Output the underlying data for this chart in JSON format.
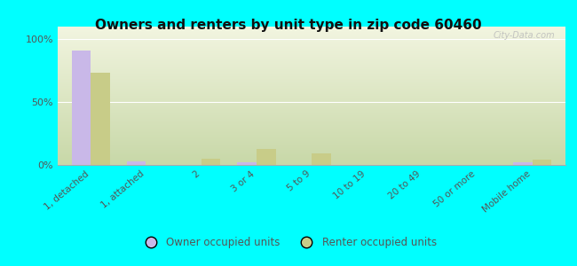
{
  "title": "Owners and renters by unit type in zip code 60460",
  "categories": [
    "1, detached",
    "1, attached",
    "2",
    "3 or 4",
    "5 to 9",
    "10 to 19",
    "20 to 49",
    "50 or more",
    "Mobile home"
  ],
  "owner_values": [
    91,
    3,
    0,
    2,
    0,
    0,
    0,
    0,
    2
  ],
  "renter_values": [
    73,
    0,
    5,
    13,
    9,
    0,
    0,
    0,
    4
  ],
  "owner_color": "#c9b8e8",
  "renter_color": "#c8cc88",
  "background_color": "#00ffff",
  "plot_bg_color": "#e8eec8",
  "watermark": "City-Data.com",
  "ylabel_ticks": [
    "0%",
    "50%",
    "100%"
  ],
  "ytick_vals": [
    0,
    50,
    100
  ],
  "ylim": [
    0,
    110
  ],
  "bar_width": 0.35,
  "legend_owner": "Owner occupied units",
  "legend_renter": "Renter occupied units"
}
